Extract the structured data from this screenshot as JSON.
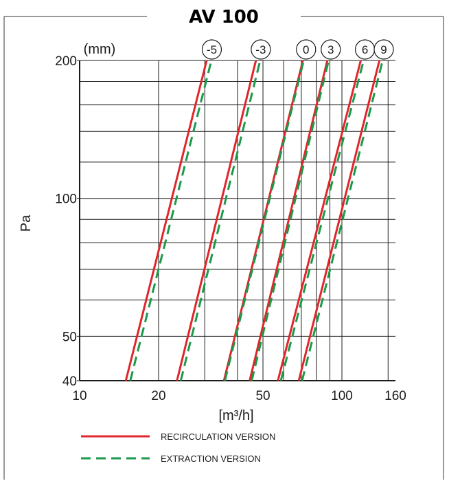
{
  "chart_data": {
    "type": "line",
    "title": "AV 100",
    "xlabel": "[m³/h]",
    "ylabel": "Pa",
    "unit_label": "(mm)",
    "x_scale": "log",
    "y_scale": "log",
    "xlim": [
      10,
      160
    ],
    "ylim": [
      40,
      200
    ],
    "x_ticks": [
      10,
      20,
      50,
      100,
      160
    ],
    "y_ticks": [
      40,
      50,
      100,
      200
    ],
    "x_tick_labels": [
      "10",
      "20",
      "50",
      "100",
      "160"
    ],
    "y_tick_labels": [
      "40",
      "50",
      "100",
      "200"
    ],
    "grid": true,
    "legend": {
      "placement": "bottom",
      "entries": [
        {
          "label": "RECIRCULATION VERSION",
          "color": "#e0262b",
          "style": "solid"
        },
        {
          "label": "EXTRACTION VERSION",
          "color": "#1a9a4a",
          "style": "dashed"
        }
      ]
    },
    "curve_labels": [
      "-5",
      "-3",
      "0",
      "3",
      "6",
      "9"
    ],
    "series": [
      {
        "setting": "-5",
        "version": "recirculation",
        "x": [
          15,
          30.5
        ],
        "y": [
          40,
          200
        ]
      },
      {
        "setting": "-5",
        "version": "extraction",
        "x": [
          15.6,
          31.8
        ],
        "y": [
          40,
          200
        ]
      },
      {
        "setting": "-3",
        "version": "recirculation",
        "x": [
          23.5,
          47
        ],
        "y": [
          40,
          200
        ]
      },
      {
        "setting": "-3",
        "version": "extraction",
        "x": [
          24.3,
          48.8
        ],
        "y": [
          40,
          200
        ]
      },
      {
        "setting": "0",
        "version": "recirculation",
        "x": [
          35.5,
          71
        ],
        "y": [
          40,
          200
        ]
      },
      {
        "setting": "0",
        "version": "extraction",
        "x": [
          35.8,
          71.5
        ],
        "y": [
          40,
          200
        ]
      },
      {
        "setting": "3",
        "version": "recirculation",
        "x": [
          44.5,
          88
        ],
        "y": [
          40,
          200
        ]
      },
      {
        "setting": "3",
        "version": "extraction",
        "x": [
          45.3,
          89
        ],
        "y": [
          40,
          200
        ]
      },
      {
        "setting": "6",
        "version": "recirculation",
        "x": [
          57,
          118
        ],
        "y": [
          40,
          200
        ]
      },
      {
        "setting": "6",
        "version": "extraction",
        "x": [
          58.5,
          121
        ],
        "y": [
          40,
          200
        ]
      },
      {
        "setting": "9",
        "version": "recirculation",
        "x": [
          68.5,
          139
        ],
        "y": [
          40,
          200
        ]
      },
      {
        "setting": "9",
        "version": "extraction",
        "x": [
          70.5,
          143
        ],
        "y": [
          40,
          200
        ]
      }
    ]
  }
}
